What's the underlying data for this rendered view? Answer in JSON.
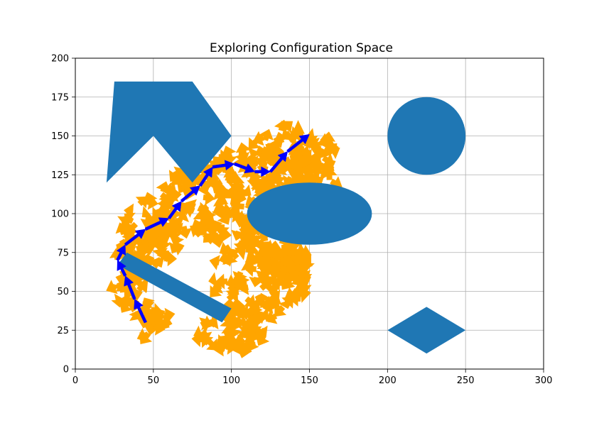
{
  "chart_data": {
    "type": "scatter",
    "title": "Exploring Configuration Space",
    "xlabel": "",
    "ylabel": "",
    "xlim": [
      0,
      300
    ],
    "ylim": [
      0,
      200
    ],
    "x_ticks": [
      0,
      50,
      100,
      150,
      200,
      250,
      300
    ],
    "y_ticks": [
      0,
      25,
      50,
      75,
      100,
      125,
      150,
      175,
      200
    ],
    "grid": true,
    "colors": {
      "obstacle": "#1f77b4",
      "exploration": "#ffa500",
      "path": "#0000ff",
      "grid": "#b0b0b0"
    },
    "obstacles": [
      {
        "shape": "polygon",
        "points": [
          [
            25,
            185
          ],
          [
            75,
            185
          ],
          [
            100,
            150
          ],
          [
            75,
            120
          ],
          [
            50,
            150
          ],
          [
            20,
            120
          ]
        ]
      },
      {
        "shape": "polygon",
        "points": [
          [
            27,
            67
          ],
          [
            33,
            75
          ],
          [
            100,
            39
          ],
          [
            94,
            30
          ]
        ]
      },
      {
        "shape": "ellipse",
        "center": [
          150,
          100
        ],
        "rx": 40,
        "ry": 20
      },
      {
        "shape": "circle",
        "center": [
          225,
          150
        ],
        "r": 25
      },
      {
        "shape": "polygon",
        "points": [
          [
            200,
            25
          ],
          [
            225,
            40
          ],
          [
            250,
            25
          ],
          [
            225,
            10
          ]
        ]
      }
    ],
    "path": [
      [
        45,
        30
      ],
      [
        38,
        45
      ],
      [
        32,
        60
      ],
      [
        27,
        70
      ],
      [
        32,
        80
      ],
      [
        45,
        90
      ],
      [
        60,
        97
      ],
      [
        68,
        108
      ],
      [
        80,
        118
      ],
      [
        88,
        130
      ],
      [
        102,
        132
      ],
      [
        115,
        127
      ],
      [
        125,
        127
      ],
      [
        136,
        140
      ],
      [
        150,
        151
      ]
    ]
  }
}
